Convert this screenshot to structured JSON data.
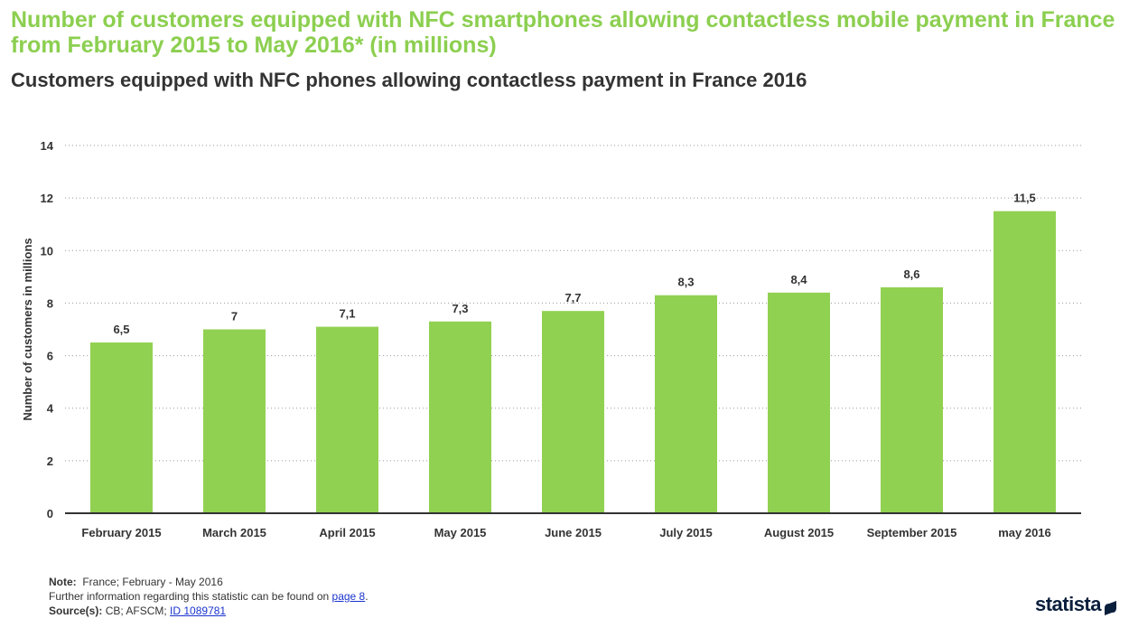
{
  "title": "Number of customers equipped with NFC smartphones allowing contactless mobile payment in France from February 2015 to May 2016* (in millions)",
  "subtitle": "Customers equipped with NFC phones allowing contactless payment in France 2016",
  "colors": {
    "title": "#8ccf50",
    "bar": "#91d151",
    "text": "#333333",
    "link": "#1a33cc"
  },
  "chart_data": {
    "type": "bar",
    "categories": [
      "February 2015",
      "March 2015",
      "April 2015",
      "May 2015",
      "June 2015",
      "July 2015",
      "August 2015",
      "September 2015",
      "may 2016"
    ],
    "values": [
      6.5,
      7,
      7.1,
      7.3,
      7.7,
      8.3,
      8.4,
      8.6,
      11.5
    ],
    "value_labels": [
      "6,5",
      "7",
      "7,1",
      "7,3",
      "7,7",
      "8,3",
      "8,4",
      "8,6",
      "11,5"
    ],
    "ylabel": "Number of customers in millions",
    "xlabel": "",
    "ylim": [
      0,
      14
    ],
    "yticks": [
      0,
      2,
      4,
      6,
      8,
      10,
      12,
      14
    ],
    "grid": true
  },
  "footer": {
    "note_label": "Note:",
    "note_text": "France; February - May 2016",
    "info_text": "Further information regarding this statistic can be found on",
    "info_link": "page 8",
    "info_end": ".",
    "source_label": "Source(s):",
    "source_text": "CB; AFSCM;",
    "source_link": "ID 1089781"
  },
  "logo": {
    "text": "statista",
    "icon": "statista-logo-icon"
  }
}
